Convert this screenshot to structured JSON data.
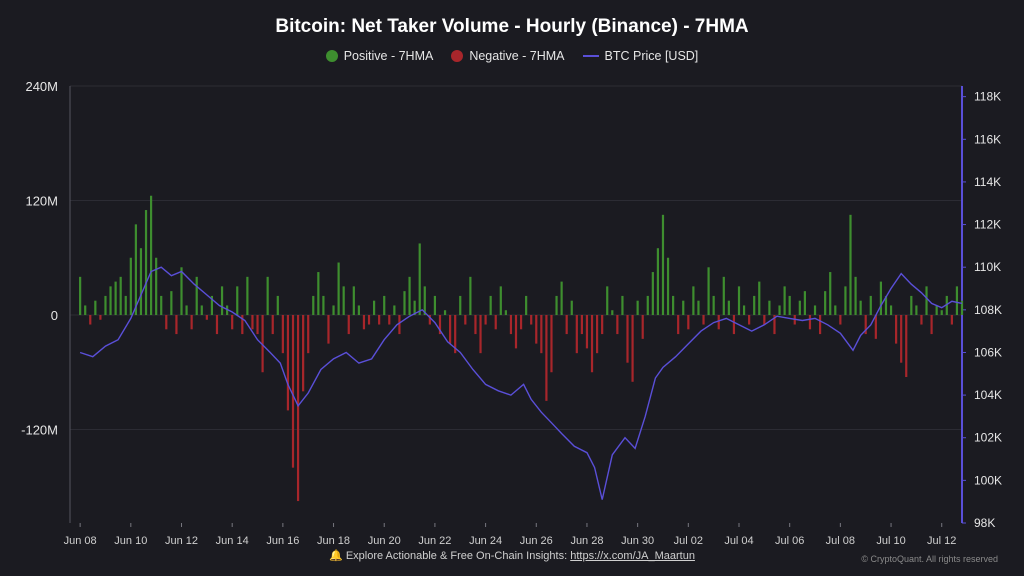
{
  "title": "Bitcoin: Net Taker Volume - Hourly (Binance) - 7HMA",
  "legend": {
    "positive": "Positive - 7HMA",
    "negative": "Negative - 7HMA",
    "price": "BTC Price [USD]"
  },
  "colors": {
    "positive": "#3e8e2f",
    "negative": "#a8262b",
    "price": "#5a4fd8",
    "background": "#1b1b21",
    "grid": "#2c2c34"
  },
  "footer": {
    "bell": "🔔",
    "text": "Explore Actionable & Free On-Chain Insights:",
    "link": "https://x.com/JA_Maartun"
  },
  "copyright": "© CryptoQuant. All rights reserved",
  "chart_data": {
    "type": "bar",
    "title": "Bitcoin: Net Taker Volume - Hourly (Binance) - 7HMA",
    "x_ticks": [
      "Jun 08",
      "Jun 10",
      "Jun 12",
      "Jun 14",
      "Jun 16",
      "Jun 18",
      "Jun 20",
      "Jun 22",
      "Jun 24",
      "Jun 26",
      "Jun 28",
      "Jun 30",
      "Jul 02",
      "Jul 04",
      "Jul 06",
      "Jul 08",
      "Jul 10",
      "Jul 12"
    ],
    "x_range_days": [
      -0.4,
      34.8
    ],
    "y_left_ticks": [
      "240M",
      "120M",
      "0",
      "-120M"
    ],
    "y_left_range": [
      -218,
      240
    ],
    "y_right_ticks": [
      "118K",
      "116K",
      "114K",
      "112K",
      "110K",
      "108K",
      "106K",
      "104K",
      "102K",
      "100K",
      "98K"
    ],
    "y_right_range": [
      98000,
      118500
    ],
    "net_taker_volume_M": [
      [
        0.0,
        40
      ],
      [
        0.2,
        10
      ],
      [
        0.4,
        -10
      ],
      [
        0.6,
        15
      ],
      [
        0.8,
        -5
      ],
      [
        1.0,
        20
      ],
      [
        1.2,
        30
      ],
      [
        1.4,
        35
      ],
      [
        1.6,
        40
      ],
      [
        1.8,
        20
      ],
      [
        2.0,
        60
      ],
      [
        2.2,
        95
      ],
      [
        2.4,
        70
      ],
      [
        2.6,
        110
      ],
      [
        2.8,
        125
      ],
      [
        3.0,
        60
      ],
      [
        3.2,
        20
      ],
      [
        3.4,
        -15
      ],
      [
        3.6,
        25
      ],
      [
        3.8,
        -20
      ],
      [
        4.0,
        50
      ],
      [
        4.2,
        10
      ],
      [
        4.4,
        -15
      ],
      [
        4.6,
        40
      ],
      [
        4.8,
        10
      ],
      [
        5.0,
        -5
      ],
      [
        5.2,
        20
      ],
      [
        5.4,
        -20
      ],
      [
        5.6,
        30
      ],
      [
        5.8,
        10
      ],
      [
        6.0,
        -15
      ],
      [
        6.2,
        30
      ],
      [
        6.4,
        -20
      ],
      [
        6.6,
        40
      ],
      [
        6.8,
        -15
      ],
      [
        7.0,
        -20
      ],
      [
        7.2,
        -60
      ],
      [
        7.4,
        40
      ],
      [
        7.6,
        -20
      ],
      [
        7.8,
        20
      ],
      [
        8.0,
        -40
      ],
      [
        8.2,
        -100
      ],
      [
        8.4,
        -160
      ],
      [
        8.6,
        -195
      ],
      [
        8.8,
        -80
      ],
      [
        9.0,
        -40
      ],
      [
        9.2,
        20
      ],
      [
        9.4,
        45
      ],
      [
        9.6,
        20
      ],
      [
        9.8,
        -30
      ],
      [
        10.0,
        10
      ],
      [
        10.2,
        55
      ],
      [
        10.4,
        30
      ],
      [
        10.6,
        -20
      ],
      [
        10.8,
        30
      ],
      [
        11.0,
        10
      ],
      [
        11.2,
        -15
      ],
      [
        11.4,
        -10
      ],
      [
        11.6,
        15
      ],
      [
        11.8,
        -10
      ],
      [
        12.0,
        20
      ],
      [
        12.2,
        -10
      ],
      [
        12.4,
        10
      ],
      [
        12.6,
        -20
      ],
      [
        12.8,
        25
      ],
      [
        13.0,
        40
      ],
      [
        13.2,
        15
      ],
      [
        13.4,
        75
      ],
      [
        13.6,
        30
      ],
      [
        13.8,
        -10
      ],
      [
        14.0,
        20
      ],
      [
        14.2,
        -20
      ],
      [
        14.4,
        5
      ],
      [
        14.6,
        -30
      ],
      [
        14.8,
        -40
      ],
      [
        15.0,
        20
      ],
      [
        15.2,
        -10
      ],
      [
        15.4,
        40
      ],
      [
        15.6,
        -20
      ],
      [
        15.8,
        -40
      ],
      [
        16.0,
        -10
      ],
      [
        16.2,
        20
      ],
      [
        16.4,
        -15
      ],
      [
        16.6,
        30
      ],
      [
        16.8,
        5
      ],
      [
        17.0,
        -20
      ],
      [
        17.2,
        -35
      ],
      [
        17.4,
        -15
      ],
      [
        17.6,
        20
      ],
      [
        17.8,
        -10
      ],
      [
        18.0,
        -30
      ],
      [
        18.2,
        -40
      ],
      [
        18.4,
        -90
      ],
      [
        18.6,
        -60
      ],
      [
        18.8,
        20
      ],
      [
        19.0,
        35
      ],
      [
        19.2,
        -20
      ],
      [
        19.4,
        15
      ],
      [
        19.6,
        -40
      ],
      [
        19.8,
        -20
      ],
      [
        20.0,
        -35
      ],
      [
        20.2,
        -60
      ],
      [
        20.4,
        -40
      ],
      [
        20.6,
        -20
      ],
      [
        20.8,
        30
      ],
      [
        21.0,
        5
      ],
      [
        21.2,
        -20
      ],
      [
        21.4,
        20
      ],
      [
        21.6,
        -50
      ],
      [
        21.8,
        -70
      ],
      [
        22.0,
        15
      ],
      [
        22.2,
        -25
      ],
      [
        22.4,
        20
      ],
      [
        22.6,
        45
      ],
      [
        22.8,
        70
      ],
      [
        23.0,
        105
      ],
      [
        23.2,
        60
      ],
      [
        23.4,
        20
      ],
      [
        23.6,
        -20
      ],
      [
        23.8,
        15
      ],
      [
        24.0,
        -15
      ],
      [
        24.2,
        30
      ],
      [
        24.4,
        15
      ],
      [
        24.6,
        -10
      ],
      [
        24.8,
        50
      ],
      [
        25.0,
        20
      ],
      [
        25.2,
        -15
      ],
      [
        25.4,
        40
      ],
      [
        25.6,
        15
      ],
      [
        25.8,
        -20
      ],
      [
        26.0,
        30
      ],
      [
        26.2,
        10
      ],
      [
        26.4,
        -10
      ],
      [
        26.6,
        20
      ],
      [
        26.8,
        35
      ],
      [
        27.0,
        -10
      ],
      [
        27.2,
        15
      ],
      [
        27.4,
        -20
      ],
      [
        27.6,
        10
      ],
      [
        27.8,
        30
      ],
      [
        28.0,
        20
      ],
      [
        28.2,
        -10
      ],
      [
        28.4,
        15
      ],
      [
        28.6,
        25
      ],
      [
        28.8,
        -15
      ],
      [
        29.0,
        10
      ],
      [
        29.2,
        -20
      ],
      [
        29.4,
        25
      ],
      [
        29.6,
        45
      ],
      [
        29.8,
        10
      ],
      [
        30.0,
        -10
      ],
      [
        30.2,
        30
      ],
      [
        30.4,
        105
      ],
      [
        30.6,
        40
      ],
      [
        30.8,
        15
      ],
      [
        31.0,
        -20
      ],
      [
        31.2,
        20
      ],
      [
        31.4,
        -25
      ],
      [
        31.6,
        35
      ],
      [
        31.8,
        20
      ],
      [
        32.0,
        10
      ],
      [
        32.2,
        -30
      ],
      [
        32.4,
        -50
      ],
      [
        32.6,
        -65
      ],
      [
        32.8,
        20
      ],
      [
        33.0,
        10
      ],
      [
        33.2,
        -10
      ],
      [
        33.4,
        30
      ],
      [
        33.6,
        -20
      ],
      [
        33.8,
        10
      ],
      [
        34.0,
        5
      ],
      [
        34.2,
        20
      ],
      [
        34.4,
        -10
      ],
      [
        34.6,
        30
      ],
      [
        34.8,
        15
      ]
    ],
    "btc_price_usd": [
      [
        0.0,
        106000
      ],
      [
        0.5,
        105800
      ],
      [
        1.0,
        106300
      ],
      [
        1.5,
        106600
      ],
      [
        2.0,
        107600
      ],
      [
        2.4,
        108700
      ],
      [
        2.8,
        109800
      ],
      [
        3.2,
        110000
      ],
      [
        3.6,
        109600
      ],
      [
        4.0,
        109800
      ],
      [
        4.5,
        109200
      ],
      [
        5.0,
        108700
      ],
      [
        5.5,
        108200
      ],
      [
        6.0,
        107900
      ],
      [
        6.5,
        107500
      ],
      [
        7.0,
        106600
      ],
      [
        7.5,
        106000
      ],
      [
        7.9,
        105500
      ],
      [
        8.2,
        104500
      ],
      [
        8.6,
        103500
      ],
      [
        9.0,
        104100
      ],
      [
        9.5,
        105200
      ],
      [
        10.0,
        105700
      ],
      [
        10.5,
        106000
      ],
      [
        11.0,
        105500
      ],
      [
        11.5,
        105700
      ],
      [
        12.0,
        106600
      ],
      [
        12.5,
        107300
      ],
      [
        13.0,
        107700
      ],
      [
        13.5,
        108000
      ],
      [
        14.0,
        107400
      ],
      [
        14.5,
        106500
      ],
      [
        15.0,
        106000
      ],
      [
        15.5,
        105200
      ],
      [
        16.0,
        104500
      ],
      [
        16.5,
        104200
      ],
      [
        17.0,
        104000
      ],
      [
        17.5,
        104500
      ],
      [
        17.8,
        103800
      ],
      [
        18.2,
        103200
      ],
      [
        18.6,
        102700
      ],
      [
        19.0,
        102200
      ],
      [
        19.5,
        101600
      ],
      [
        20.0,
        101300
      ],
      [
        20.3,
        100600
      ],
      [
        20.6,
        99100
      ],
      [
        21.0,
        101200
      ],
      [
        21.5,
        102000
      ],
      [
        21.9,
        101500
      ],
      [
        22.3,
        103000
      ],
      [
        22.7,
        104800
      ],
      [
        23.0,
        105300
      ],
      [
        23.5,
        105800
      ],
      [
        24.0,
        106400
      ],
      [
        24.5,
        107000
      ],
      [
        25.0,
        107400
      ],
      [
        25.5,
        107600
      ],
      [
        26.0,
        107300
      ],
      [
        26.5,
        107000
      ],
      [
        27.0,
        107300
      ],
      [
        27.5,
        107700
      ],
      [
        28.0,
        107600
      ],
      [
        28.5,
        107500
      ],
      [
        29.0,
        107600
      ],
      [
        29.5,
        107300
      ],
      [
        30.0,
        106900
      ],
      [
        30.5,
        106100
      ],
      [
        30.8,
        106800
      ],
      [
        31.2,
        107300
      ],
      [
        31.6,
        108200
      ],
      [
        32.0,
        109000
      ],
      [
        32.4,
        109700
      ],
      [
        32.8,
        109200
      ],
      [
        33.2,
        108800
      ],
      [
        33.6,
        108300
      ],
      [
        34.0,
        108100
      ],
      [
        34.4,
        108400
      ],
      [
        34.8,
        108300
      ]
    ]
  }
}
